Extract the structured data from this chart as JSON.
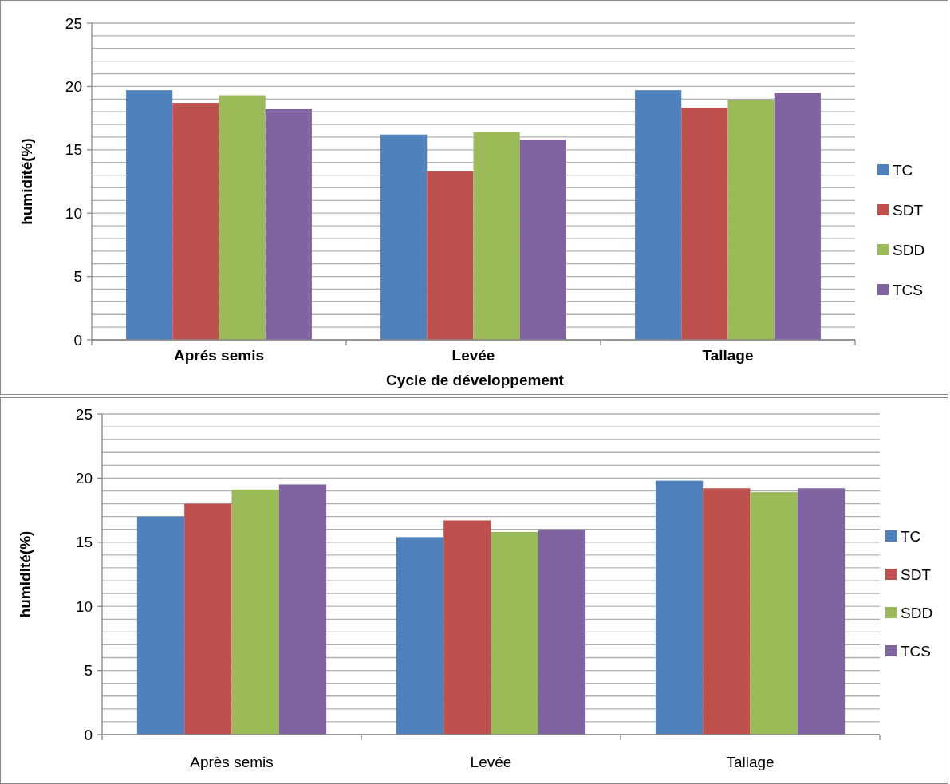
{
  "chart_data": [
    {
      "type": "bar",
      "xlabel": "Cycle de développement",
      "ylabel": "humidité(%)",
      "categories": [
        "Aprés semis",
        "Levée",
        "Tallage"
      ],
      "series": [
        {
          "name": "TC",
          "color": "#4f81bd",
          "values": [
            19.7,
            16.2,
            19.7
          ]
        },
        {
          "name": "SDT",
          "color": "#c0504d",
          "values": [
            18.7,
            13.3,
            18.3
          ]
        },
        {
          "name": "SDD",
          "color": "#9bbb59",
          "values": [
            19.3,
            16.4,
            18.9
          ]
        },
        {
          "name": "TCS",
          "color": "#8064a2",
          "values": [
            18.2,
            15.8,
            19.5
          ]
        }
      ],
      "ylim": [
        0,
        25
      ],
      "yticks": [
        0,
        {
          "value": 1,
          "label": null
        },
        {
          "value": 2,
          "label": null
        },
        {
          "value": 3,
          "label": null
        },
        {
          "value": 4,
          "label": null
        },
        5,
        {
          "value": 6,
          "label": null
        },
        {
          "value": 7,
          "label": null
        },
        {
          "value": 8,
          "label": null
        },
        {
          "value": 9,
          "label": null
        },
        10,
        {
          "value": 11,
          "label": null
        },
        {
          "value": 12,
          "label": null
        },
        {
          "value": 13,
          "label": null
        },
        {
          "value": 14,
          "label": null
        },
        15,
        {
          "value": 16,
          "label": null
        },
        {
          "value": 17,
          "label": null
        },
        {
          "value": 18,
          "label": null
        },
        {
          "value": 19,
          "label": null
        },
        20,
        {
          "value": 21,
          "label": null
        },
        {
          "value": 22,
          "label": null
        },
        {
          "value": 23,
          "label": null
        },
        {
          "value": 24,
          "label": null
        },
        25
      ],
      "grid": "y",
      "legend": "right"
    },
    {
      "type": "bar",
      "ylabel": "humidité(%)",
      "categories": [
        "Après semis",
        "Levée",
        "Tallage"
      ],
      "series": [
        {
          "name": "TC",
          "color": "#4f81bd",
          "values": [
            17.0,
            15.4,
            19.8
          ]
        },
        {
          "name": "SDT",
          "color": "#c0504d",
          "values": [
            18.0,
            16.7,
            19.2
          ]
        },
        {
          "name": "SDD",
          "color": "#9bbb59",
          "values": [
            19.1,
            15.8,
            18.9
          ]
        },
        {
          "name": "TCS",
          "color": "#8064a2",
          "values": [
            19.5,
            16.0,
            19.2
          ]
        }
      ],
      "ylim": [
        0,
        25
      ],
      "yticks": [
        0,
        {
          "value": 1,
          "label": null
        },
        {
          "value": 2,
          "label": null
        },
        {
          "value": 3,
          "label": null
        },
        {
          "value": 4,
          "label": null
        },
        5,
        {
          "value": 6,
          "label": null
        },
        {
          "value": 7,
          "label": null
        },
        {
          "value": 8,
          "label": null
        },
        {
          "value": 9,
          "label": null
        },
        10,
        {
          "value": 11,
          "label": null
        },
        {
          "value": 12,
          "label": null
        },
        {
          "value": 13,
          "label": null
        },
        {
          "value": 14,
          "label": null
        },
        15,
        {
          "value": 16,
          "label": null
        },
        {
          "value": 17,
          "label": null
        },
        {
          "value": 18,
          "label": null
        },
        {
          "value": 19,
          "label": null
        },
        20,
        {
          "value": 21,
          "label": null
        },
        {
          "value": 22,
          "label": null
        },
        {
          "value": 23,
          "label": null
        },
        {
          "value": 24,
          "label": null
        },
        25
      ],
      "grid": "y",
      "legend": "right"
    }
  ]
}
